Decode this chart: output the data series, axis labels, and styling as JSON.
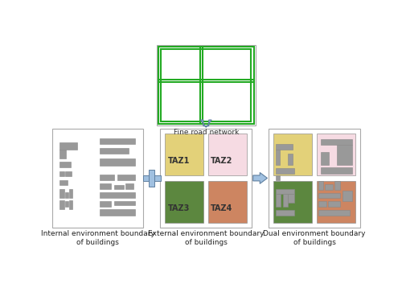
{
  "fig_width": 5.0,
  "fig_height": 3.63,
  "dpi": 100,
  "bg_color": "#ffffff",
  "title": "Fine road network",
  "title_fontsize": 6.5,
  "label_fontsize": 6.5,
  "road_color": "#22aa22",
  "taz_colors": {
    "TAZ1": "#e0cc6a",
    "TAZ2": "#f5d8e0",
    "TAZ3": "#4a7a2a",
    "TAZ4": "#c87850"
  },
  "labels": {
    "left": "Internal environment boundary\nof buildings",
    "center": "External environment boundary\nof buildings",
    "right": "Dual environment boundary\nof buildings"
  },
  "gray_building": "#999999",
  "arrow_color": "#a0c0e0",
  "plus_color": "#a0c0e0",
  "box_edge": "#aaaaaa"
}
